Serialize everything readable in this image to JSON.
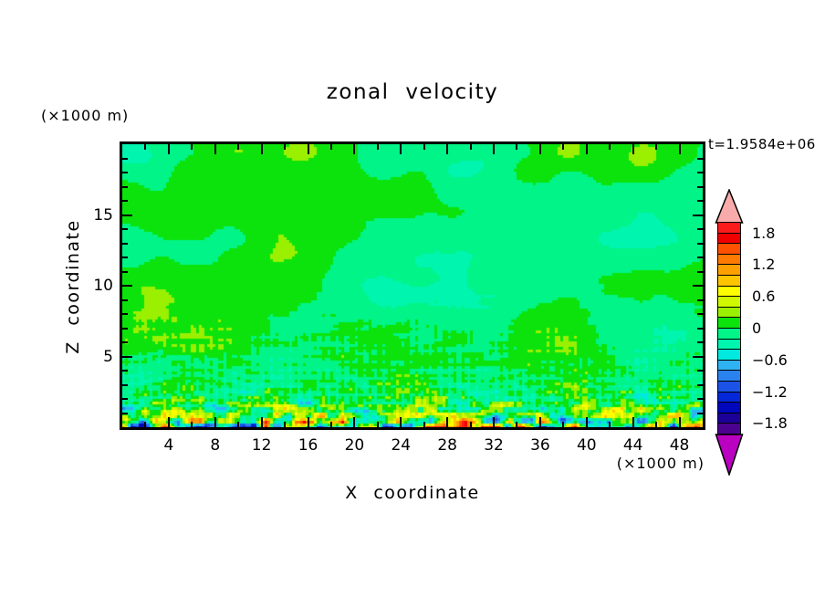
{
  "figure": {
    "title": "zonal velocity",
    "time_label": "t=1.9584e+06",
    "y_axis_unit": "(×1000 m)",
    "x_axis_unit": "(×1000 m)",
    "x_axis_title": "X coordinate",
    "y_axis_title": "Z coordinate"
  },
  "chart_data": {
    "type": "heatmap",
    "title": "zonal velocity",
    "xlabel": "X coordinate (×1000 m)",
    "ylabel": "Z coordinate (×1000 m)",
    "annotation": "t=1.9584e+06",
    "x_range": [
      0,
      50
    ],
    "z_range": [
      0,
      20
    ],
    "x_ticks_major": [
      4,
      8,
      12,
      16,
      20,
      24,
      28,
      32,
      36,
      40,
      44,
      48
    ],
    "x_tick_minor_step": 2,
    "z_ticks_major": [
      5,
      10,
      15
    ],
    "z_tick_minor_step": 1,
    "grid": false,
    "contour_interval": 0.2,
    "value_range": [
      -2.0,
      2.0
    ],
    "colorbar_labels": [
      "1.8",
      "1.2",
      "0.6",
      "0",
      "-0.6",
      "-1.2",
      "-1.8"
    ],
    "colorbar_label_values": [
      1.8,
      1.2,
      0.6,
      0,
      -0.6,
      -1.2,
      -1.8
    ],
    "palette_high_to_low": [
      "#fb1b1b",
      "#f20000",
      "#ff5200",
      "#ff7a00",
      "#ffa000",
      "#ffc400",
      "#fdfd00",
      "#d0f800",
      "#9bef00",
      "#0ce30c",
      "#00f487",
      "#00f5ae",
      "#00e9df",
      "#2fb2f2",
      "#2a82ee",
      "#1b53e8",
      "#0627d8",
      "#0007bd",
      "#1c0199",
      "#4b0290"
    ],
    "over_arrow_color": "#f9abab",
    "under_arrow_color": "#ba00c0",
    "field_summary": "Contour-filled zonal velocity field u(x,z). Upper region (z>9) is smooth large-scale patches alternating between -0.2..0 (spring green) and 0..0.2 (green). Mid region (2<z<9) shows a fine diagonal gravity-wave crosshatch with occasional turquoise (-0.6..-0.2) and yellow-green/yellow (0.4..0.8) speckles. Below z≈2 a turbulent boundary layer with |u| up to ~2: yellow/gold/orange/red positive streaks and cyan/blue/dark-blue negative spots concentrated along the bottom boundary.",
    "field_model": {
      "seed": 7,
      "base": {
        "amp": 0.22,
        "sx": 7.5,
        "sz": 3.2,
        "amp2": 0.09,
        "sx2": 3.2,
        "sz2": 1.5
      },
      "waves": {
        "amp": 0.34,
        "zmax": 10,
        "kx": 3.9,
        "kz": 5.3,
        "phase_amp": 3.0,
        "phase_sx": 6,
        "phase_sz": 4
      },
      "turb": [
        {
          "amp": 1.95,
          "zscale": 1.05,
          "sx": 0.95,
          "sz": 0.42
        },
        {
          "amp": 0.55,
          "zscale": 3.0,
          "sx": 1.6,
          "sz": 0.5
        }
      ],
      "surface_bias": {
        "amp": 0.3,
        "zscale": 0.8
      }
    }
  }
}
